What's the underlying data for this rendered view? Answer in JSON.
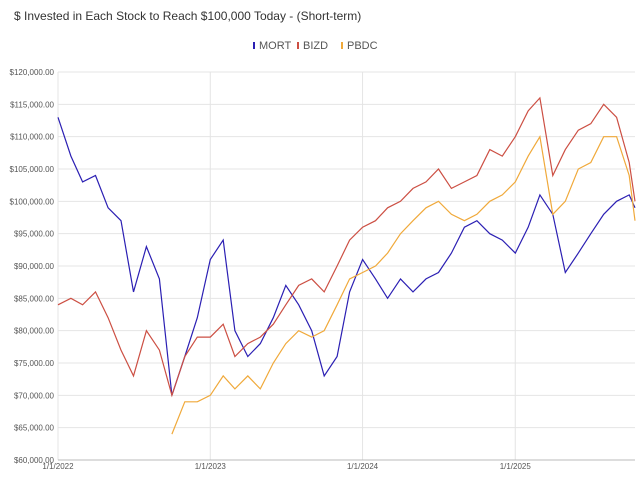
{
  "chart_data": {
    "type": "line",
    "title": "$ Invested in Each Stock to Reach $100,000 Today - (Short-term)",
    "x": [
      "2022-01-01",
      "2022-02-01",
      "2022-03-01",
      "2022-04-01",
      "2022-05-01",
      "2022-06-01",
      "2022-07-01",
      "2022-08-01",
      "2022-09-01",
      "2022-10-01",
      "2022-11-01",
      "2022-12-01",
      "2023-01-01",
      "2023-02-01",
      "2023-03-01",
      "2023-04-01",
      "2023-05-01",
      "2023-06-01",
      "2023-07-01",
      "2023-08-01",
      "2023-09-01",
      "2023-10-01",
      "2023-11-01",
      "2023-12-01",
      "2024-01-01",
      "2024-02-01",
      "2024-03-01",
      "2024-04-01",
      "2024-05-01",
      "2024-06-01",
      "2024-07-01",
      "2024-08-01",
      "2024-09-01",
      "2024-10-01",
      "2024-11-01",
      "2024-12-01",
      "2025-01-01",
      "2025-02-01",
      "2025-03-01",
      "2025-04-01",
      "2025-05-01",
      "2025-06-01",
      "2025-07-01",
      "2025-08-01",
      "2025-09-01",
      "2025-10-01",
      "2025-10-15"
    ],
    "series": [
      {
        "name": "MORT",
        "color": "#2b1fb3",
        "values": [
          113000,
          107000,
          103000,
          104000,
          99000,
          97000,
          86000,
          93000,
          88000,
          70000,
          76000,
          82000,
          91000,
          94000,
          80000,
          76000,
          78000,
          82000,
          87000,
          84000,
          80000,
          73000,
          76000,
          86000,
          91000,
          88000,
          85000,
          88000,
          86000,
          88000,
          89000,
          92000,
          96000,
          97000,
          95000,
          94000,
          92000,
          96000,
          101000,
          98000,
          89000,
          92000,
          95000,
          98000,
          100000,
          101000,
          99000
        ]
      },
      {
        "name": "BIZD",
        "color": "#cc4f43",
        "values": [
          84000,
          85000,
          84000,
          86000,
          82000,
          77000,
          73000,
          80000,
          77000,
          70000,
          76000,
          79000,
          79000,
          81000,
          76000,
          78000,
          79000,
          81000,
          84000,
          87000,
          88000,
          86000,
          90000,
          94000,
          96000,
          97000,
          99000,
          100000,
          102000,
          103000,
          105000,
          102000,
          103000,
          104000,
          108000,
          107000,
          110000,
          114000,
          116000,
          104000,
          108000,
          111000,
          112000,
          115000,
          113000,
          106000,
          100000
        ]
      },
      {
        "name": "PBDC",
        "color": "#f0a93a",
        "values": [
          null,
          null,
          null,
          null,
          null,
          null,
          null,
          null,
          null,
          64000,
          69000,
          69000,
          70000,
          73000,
          71000,
          73000,
          71000,
          75000,
          78000,
          80000,
          79000,
          80000,
          84000,
          88000,
          89000,
          90000,
          92000,
          95000,
          97000,
          99000,
          100000,
          98000,
          97000,
          98000,
          100000,
          101000,
          103000,
          107000,
          110000,
          98000,
          100000,
          105000,
          106000,
          110000,
          110000,
          104000,
          97000
        ]
      }
    ],
    "xlim": [
      "2022-01-01",
      "2025-10-15"
    ],
    "xticks": [
      {
        "value": "2022-01-01",
        "label": "1/1/2022"
      },
      {
        "value": "2023-01-01",
        "label": "1/1/2023"
      },
      {
        "value": "2024-01-01",
        "label": "1/1/2024"
      },
      {
        "value": "2025-01-01",
        "label": "1/1/2025"
      }
    ],
    "ylim": [
      60000,
      120000
    ],
    "yticks": [
      {
        "value": 60000,
        "label": "$60,000.00"
      },
      {
        "value": 65000,
        "label": "$65,000.00"
      },
      {
        "value": 70000,
        "label": "$70,000.00"
      },
      {
        "value": 75000,
        "label": "$75,000.00"
      },
      {
        "value": 80000,
        "label": "$80,000.00"
      },
      {
        "value": 85000,
        "label": "$85,000.00"
      },
      {
        "value": 90000,
        "label": "$90,000.00"
      },
      {
        "value": 95000,
        "label": "$95,000.00"
      },
      {
        "value": 100000,
        "label": "$100,000.00"
      },
      {
        "value": 105000,
        "label": "$105,000.00"
      },
      {
        "value": 110000,
        "label": "$110,000.00"
      },
      {
        "value": 115000,
        "label": "$115,000.00"
      },
      {
        "value": 120000,
        "label": "$120,000.00"
      }
    ],
    "grid": true,
    "legend": "top"
  }
}
